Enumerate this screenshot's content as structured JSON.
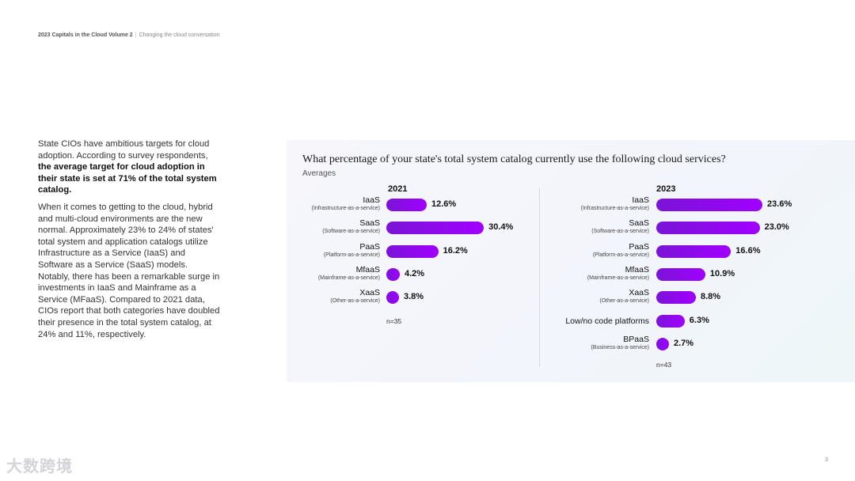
{
  "header": {
    "doc_title": "2023 Capitals in the Cloud Volume 2",
    "doc_subtitle": "Changing the cloud conversation"
  },
  "left_text": {
    "p1_start": "State CIOs have ambitious targets for cloud adoption. According to survey respondents,",
    "p1_bold": "the average target for cloud adoption in their state is set at 71% of the total system catalog.",
    "p2": "When it comes to getting to the cloud, hybrid and multi-cloud environments are the new normal. Approximately 23% to 24% of states' total system and application catalogs utilize Infrastructure as a Service (IaaS) and Software as a Service (SaaS) models. Notably, there has been a remarkable surge in investments in IaaS and Mainframe as a Service (MFaaS). Compared to 2021 data, CIOs report that both categories have doubled their presence in the total system catalog, at 24% and 11%, respectively."
  },
  "chart_data": {
    "type": "bar",
    "title": "What percentage of your state's total system catalog currently use the following cloud services?",
    "subtitle": "Averages",
    "colors": {
      "bar_start": "#7a14d6",
      "bar_end": "#a100ff"
    },
    "panels": [
      {
        "year": "2021",
        "n": "n=35",
        "bars": [
          {
            "name": "IaaS",
            "sub": "(Infrastructure-as-a-service)",
            "value": 12.6,
            "label": "12.6%"
          },
          {
            "name": "SaaS",
            "sub": "(Software-as-a-service)",
            "value": 30.4,
            "label": "30.4%"
          },
          {
            "name": "PaaS",
            "sub": "(Platform-as-a-service)",
            "value": 16.2,
            "label": "16.2%"
          },
          {
            "name": "MfaaS",
            "sub": "(Mainframe-as-a-service)",
            "value": 4.2,
            "label": "4.2%"
          },
          {
            "name": "XaaS",
            "sub": "(Other-as-a-service)",
            "value": 3.8,
            "label": "3.8%"
          }
        ]
      },
      {
        "year": "2023",
        "n": "n=43",
        "bars": [
          {
            "name": "IaaS",
            "sub": "(Infrastructure-as-a-service)",
            "value": 23.6,
            "label": "23.6%"
          },
          {
            "name": "SaaS",
            "sub": "(Software-as-a-service)",
            "value": 23.0,
            "label": "23.0%"
          },
          {
            "name": "PaaS",
            "sub": "(Platform-as-a-service)",
            "value": 16.6,
            "label": "16.6%"
          },
          {
            "name": "MfaaS",
            "sub": "(Mainframe-as-a-service)",
            "value": 10.9,
            "label": "10.9%"
          },
          {
            "name": "XaaS",
            "sub": "(Other-as-a-service)",
            "value": 8.8,
            "label": "8.8%"
          },
          {
            "name": "Low/no code platforms",
            "sub": "",
            "value": 6.3,
            "label": "6.3%"
          },
          {
            "name": "BPaaS",
            "sub": "(Business-as-a-service)",
            "value": 2.7,
            "label": "2.7%"
          }
        ]
      }
    ]
  },
  "watermark": "大数跨境",
  "page_number": "3"
}
